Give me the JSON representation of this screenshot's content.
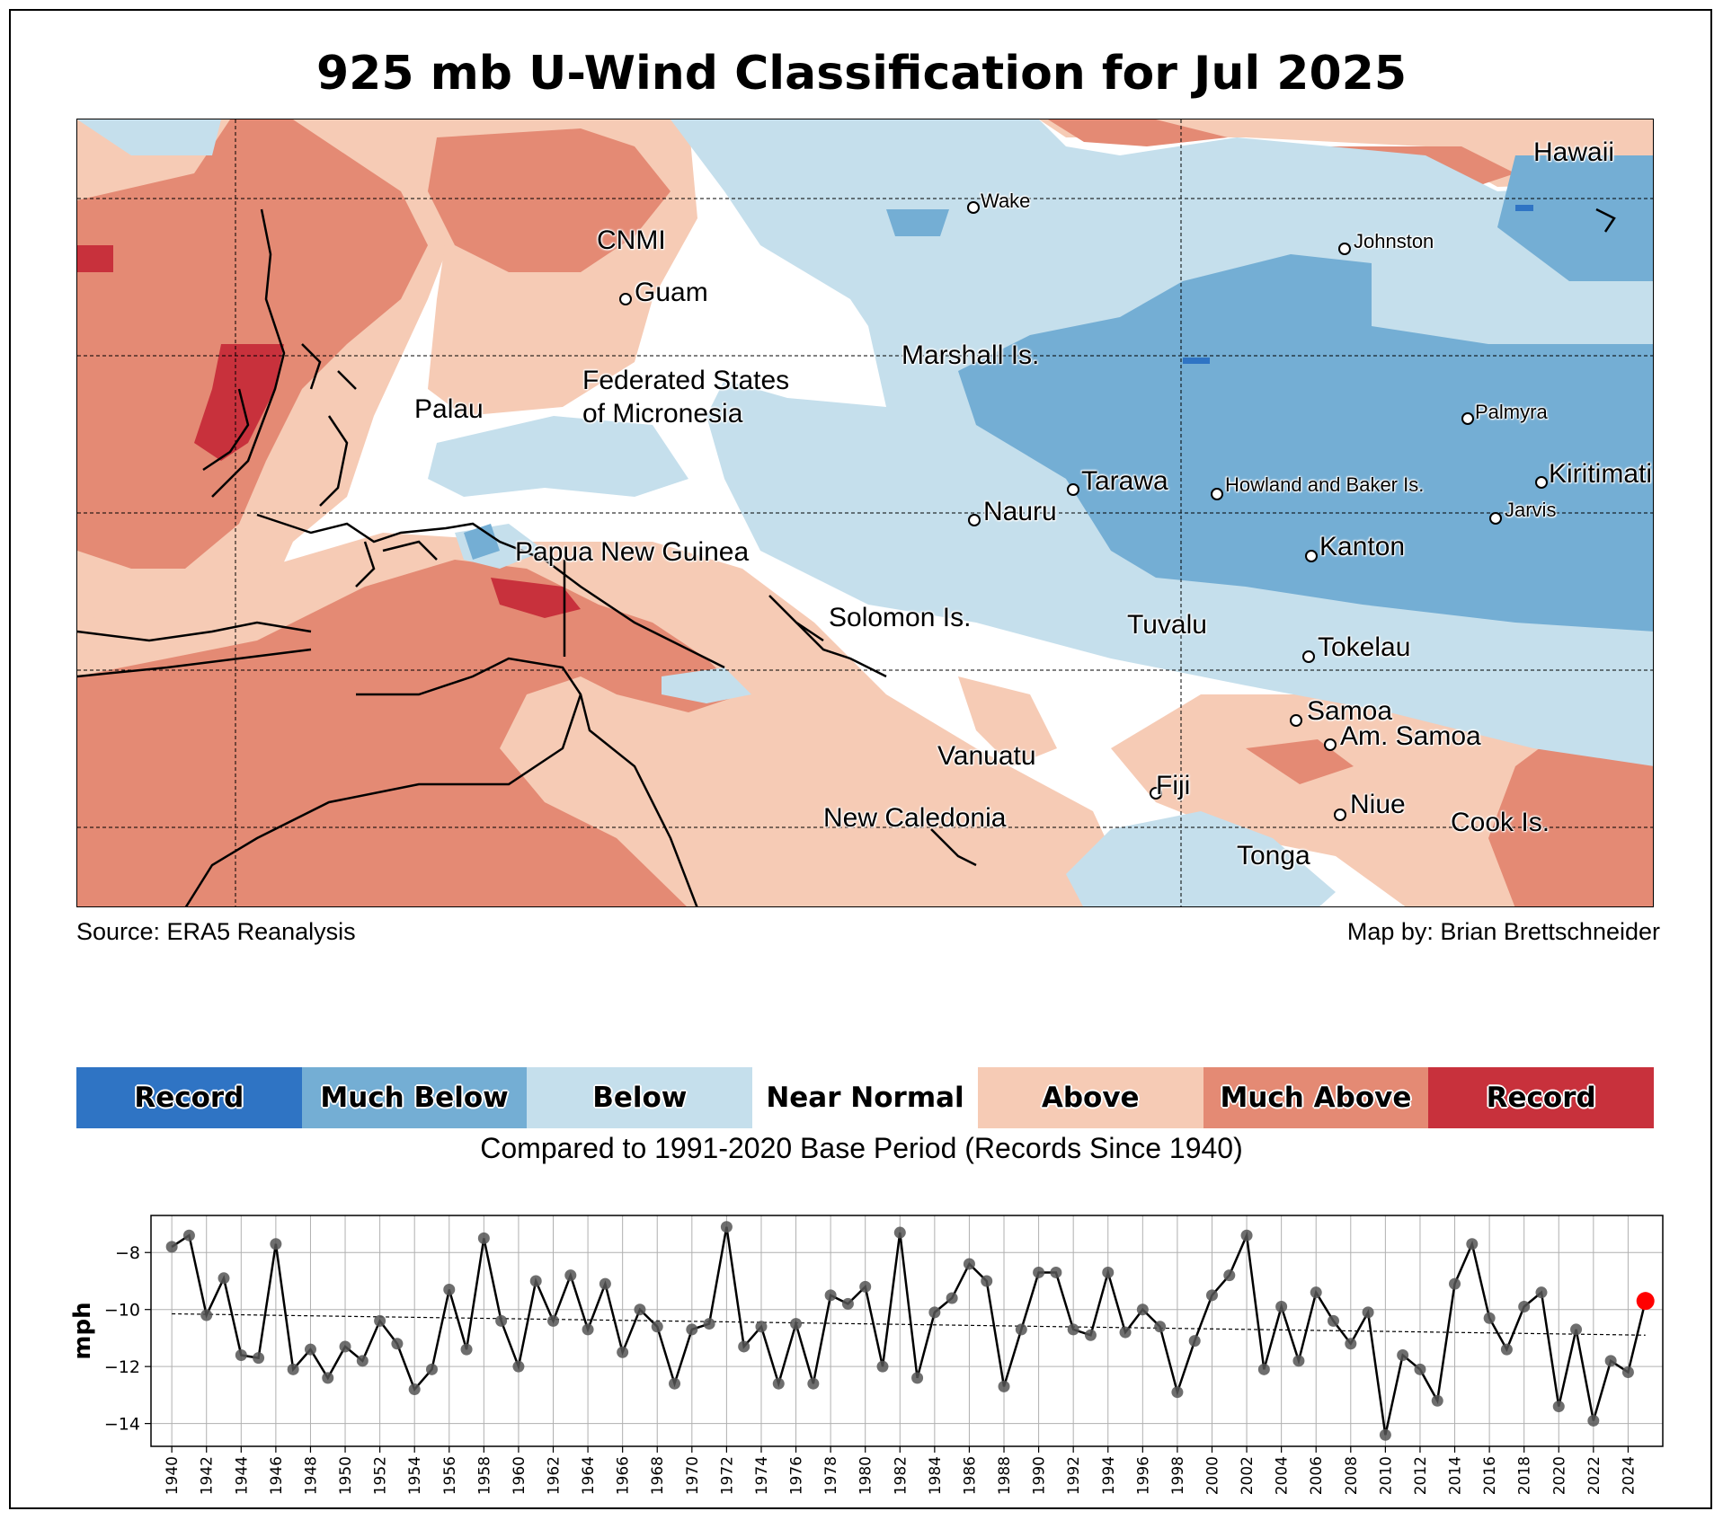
{
  "title": "925 mb U-Wind Classification for Jul 2025",
  "source_text": "Source: ERA5 Reanalysis",
  "credit_text": "Map by: Brian Brettschneider",
  "map_labels": {
    "hawaii": "Hawaii",
    "wake": "Wake",
    "cnmi": "CNMI",
    "johnston": "Johnston",
    "guam": "Guam",
    "marshall": "Marshall Is.",
    "fsm1": "Federated States",
    "fsm2": "of Micronesia",
    "palau": "Palau",
    "palmyra": "Palmyra",
    "tarawa": "Tarawa",
    "howland": "Howland and Baker Is.",
    "kiritimati": "Kiritimati",
    "nauru": "Nauru",
    "jarvis": "Jarvis",
    "png": "Papua New Guinea",
    "kanton": "Kanton",
    "solomon": "Solomon Is.",
    "tuvalu": "Tuvalu",
    "tokelau": "Tokelau",
    "samoa": "Samoa",
    "amsamoa": "Am. Samoa",
    "vanuatu": "Vanuatu",
    "fiji": "Fiji",
    "niue": "Niue",
    "newcal": "New Caledonia",
    "cook": "Cook Is.",
    "tonga": "Tonga"
  },
  "legend": {
    "items": [
      {
        "label": "Record",
        "color": "#2f74c4"
      },
      {
        "label": "Much Below",
        "color": "#74aed4"
      },
      {
        "label": "Below",
        "color": "#c5dfec"
      },
      {
        "label": "Near Normal",
        "color": "#ffffff"
      },
      {
        "label": "Above",
        "color": "#f6cbb5"
      },
      {
        "label": "Much Above",
        "color": "#e48a74"
      },
      {
        "label": "Record",
        "color": "#c8313c"
      }
    ],
    "compare_text": "Compared to 1991-2020 Base Period   (Records Since 1940)"
  },
  "chart_data": {
    "type": "line",
    "ylabel": "mph",
    "xlabel": "",
    "ylim": [
      -14.8,
      -6.7
    ],
    "yticks": [
      -14,
      -12,
      -10,
      -8
    ],
    "xticks": [
      1940,
      1942,
      1944,
      1946,
      1948,
      1950,
      1952,
      1954,
      1956,
      1958,
      1960,
      1962,
      1964,
      1966,
      1968,
      1970,
      1972,
      1974,
      1976,
      1978,
      1980,
      1982,
      1984,
      1986,
      1988,
      1990,
      1992,
      1994,
      1996,
      1998,
      2000,
      2002,
      2004,
      2006,
      2008,
      2010,
      2012,
      2014,
      2016,
      2018,
      2020,
      2022,
      2024
    ],
    "grid": true,
    "trend": {
      "start": [
        1940,
        -10.15
      ],
      "end": [
        2025,
        -10.9
      ]
    },
    "highlight": {
      "year": 2025,
      "value": -9.7,
      "color": "#ff0000"
    },
    "series": [
      {
        "name": "Jul 925 mb U-Wind",
        "x": [
          1940,
          1941,
          1942,
          1943,
          1944,
          1945,
          1946,
          1947,
          1948,
          1949,
          1950,
          1951,
          1952,
          1953,
          1954,
          1955,
          1956,
          1957,
          1958,
          1959,
          1960,
          1961,
          1962,
          1963,
          1964,
          1965,
          1966,
          1967,
          1968,
          1969,
          1970,
          1971,
          1972,
          1973,
          1974,
          1975,
          1976,
          1977,
          1978,
          1979,
          1980,
          1981,
          1982,
          1983,
          1984,
          1985,
          1986,
          1987,
          1988,
          1989,
          1990,
          1991,
          1992,
          1993,
          1994,
          1995,
          1996,
          1997,
          1998,
          1999,
          2000,
          2001,
          2002,
          2003,
          2004,
          2005,
          2006,
          2007,
          2008,
          2009,
          2010,
          2011,
          2012,
          2013,
          2014,
          2015,
          2016,
          2017,
          2018,
          2019,
          2020,
          2021,
          2022,
          2023,
          2024,
          2025
        ],
        "values": [
          -7.8,
          -7.4,
          -10.2,
          -8.9,
          -11.6,
          -11.7,
          -7.7,
          -12.1,
          -11.4,
          -12.4,
          -11.3,
          -11.8,
          -10.4,
          -11.2,
          -12.8,
          -12.1,
          -9.3,
          -11.4,
          -7.5,
          -10.4,
          -12.0,
          -9.0,
          -10.4,
          -8.8,
          -10.7,
          -9.1,
          -11.5,
          -10.0,
          -10.6,
          -12.6,
          -10.7,
          -10.5,
          -7.1,
          -11.3,
          -10.6,
          -12.6,
          -10.5,
          -12.6,
          -9.5,
          -9.8,
          -9.2,
          -12.0,
          -7.3,
          -12.4,
          -10.1,
          -9.6,
          -8.4,
          -9.0,
          -12.7,
          -10.7,
          -8.7,
          -8.7,
          -10.7,
          -10.9,
          -8.7,
          -10.8,
          -10.0,
          -10.6,
          -12.9,
          -11.1,
          -9.5,
          -8.8,
          -7.4,
          -12.1,
          -9.9,
          -11.8,
          -9.4,
          -10.4,
          -11.2,
          -10.1,
          -14.4,
          -11.6,
          -12.1,
          -13.2,
          -9.1,
          -7.7,
          -10.3,
          -11.4,
          -9.9,
          -9.4,
          -13.4,
          -10.7,
          -13.9,
          -11.8,
          -12.2,
          -9.7
        ]
      }
    ]
  }
}
